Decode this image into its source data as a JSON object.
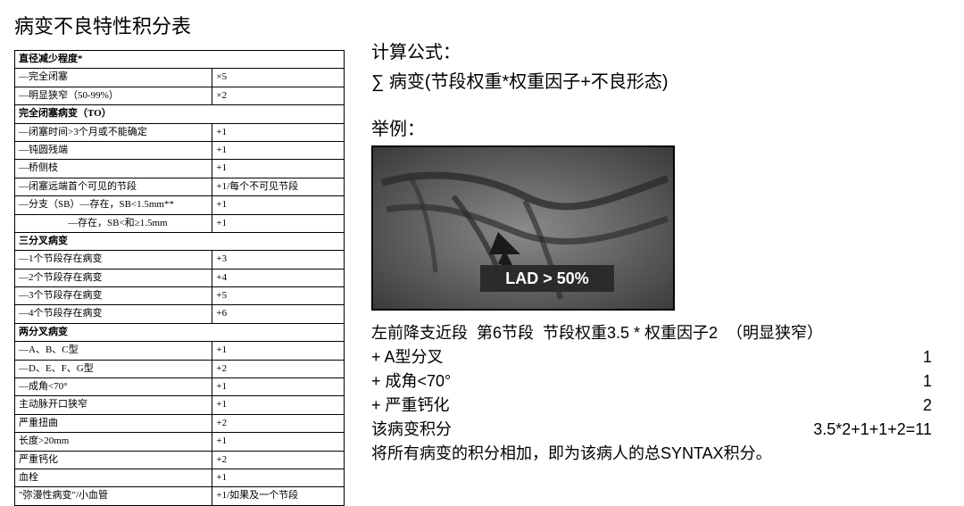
{
  "title": "病变不良特性积分表",
  "table": {
    "rows": [
      {
        "label": "直径减少程度*",
        "value": "",
        "header": true,
        "span": true
      },
      {
        "label": "—完全闭塞",
        "value": "×5"
      },
      {
        "label": "—明显狭窄（50-99%）",
        "value": "×2"
      },
      {
        "label": "完全闭塞病变（TO）",
        "value": "",
        "header": true,
        "span": true
      },
      {
        "label": "—闭塞时间>3个月或不能确定",
        "value": "+1"
      },
      {
        "label": "—钝圆残端",
        "value": "+1"
      },
      {
        "label": "—桥侧枝",
        "value": "+1"
      },
      {
        "label": "—闭塞远端首个可见的节段",
        "value": "+1/每个不可见节段"
      },
      {
        "label": "—分支（SB）—存在，SB<1.5mm**",
        "value": "+1"
      },
      {
        "label": "　　　　　—存在，SB<和≥1.5mm",
        "value": "+1"
      },
      {
        "label": "三分叉病变",
        "value": "",
        "header": true,
        "span": true
      },
      {
        "label": "—1个节段存在病变",
        "value": "+3"
      },
      {
        "label": "—2个节段存在病变",
        "value": "+4"
      },
      {
        "label": "—3个节段存在病变",
        "value": "+5"
      },
      {
        "label": "—4个节段存在病变",
        "value": "+6"
      },
      {
        "label": "两分叉病变",
        "value": "",
        "header": true,
        "span": true
      },
      {
        "label": "—A、B、C型",
        "value": "+1"
      },
      {
        "label": "—D、E、F、G型",
        "value": "+2"
      },
      {
        "label": "—成角<70°",
        "value": "+1"
      },
      {
        "label": "主动脉开口狭窄",
        "value": "+1"
      },
      {
        "label": "严重扭曲",
        "value": "+2"
      },
      {
        "label": "长度>20mm",
        "value": "+1"
      },
      {
        "label": "严重钙化",
        "value": "+2"
      },
      {
        "label": "血栓",
        "value": "+1"
      },
      {
        "label": "\"弥漫性病变\"/小血管",
        "value": "+1/如果及一个节段"
      }
    ]
  },
  "formula": {
    "title": "计算公式：",
    "text": "∑ 病变(节段权重*权重因子+不良形态)"
  },
  "example": {
    "title": "举例：",
    "image_label": "LAD > 50%",
    "image_bg": "#6b6b6b"
  },
  "calculation": {
    "lines": [
      {
        "left": "左前降支近段  第6节段  节段权重3.5 * 权重因子2  （明显狭窄）",
        "right": ""
      },
      {
        "left": "+ A型分叉",
        "right": "1"
      },
      {
        "left": "+ 成角<70°",
        "right": "1"
      },
      {
        "left": "+ 严重钙化",
        "right": "2"
      },
      {
        "left": "该病变积分",
        "right": "3.5*2+1+1+2=11"
      },
      {
        "left": "将所有病变的积分相加，即为该病人的总SYNTAX积分。",
        "right": ""
      }
    ]
  }
}
